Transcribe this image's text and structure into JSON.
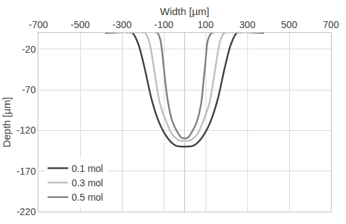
{
  "chart_data": {
    "type": "line",
    "x_label": "Width [µm]",
    "y_label": "Depth [µm]",
    "xlim": [
      -700,
      700
    ],
    "xticks": [
      -700,
      -500,
      -300,
      -100,
      100,
      300,
      500,
      700
    ],
    "ylim": [
      -220,
      0
    ],
    "yticks": [
      -20,
      -70,
      -120,
      -170,
      -220
    ],
    "grid": true,
    "legend": "lower left",
    "series": [
      {
        "name": "0.1 mol",
        "color": "#404040",
        "x": [
          -380,
          -250,
          -220,
          -190,
          -160,
          -130,
          -100,
          -70,
          -40,
          0,
          40,
          70,
          100,
          130,
          160,
          190,
          220,
          250,
          380
        ],
        "values": [
          0,
          0,
          -15,
          -45,
          -80,
          -105,
          -122,
          -133,
          -139,
          -140,
          -139,
          -133,
          -122,
          -105,
          -80,
          -45,
          -15,
          0,
          0
        ]
      },
      {
        "name": "0.3 mol",
        "color": "#bfbfbf",
        "x": [
          -280,
          -190,
          -170,
          -155,
          -140,
          -120,
          -90,
          -60,
          -30,
          0,
          30,
          60,
          90,
          120,
          140,
          155,
          170,
          190,
          280
        ],
        "values": [
          0,
          0,
          -10,
          -30,
          -55,
          -85,
          -108,
          -125,
          -132,
          -133,
          -132,
          -125,
          -108,
          -85,
          -55,
          -30,
          -10,
          0,
          0
        ]
      },
      {
        "name": "0.5 mol",
        "color": "#808080",
        "x": [
          -360,
          -130,
          -115,
          -105,
          -95,
          -80,
          -60,
          -35,
          -15,
          0,
          15,
          35,
          60,
          80,
          92,
          100,
          110,
          130,
          360
        ],
        "values": [
          0,
          0,
          -10,
          -30,
          -55,
          -85,
          -108,
          -122,
          -129,
          -130,
          -129,
          -122,
          -108,
          -85,
          -55,
          -35,
          -10,
          0,
          0
        ]
      }
    ]
  }
}
